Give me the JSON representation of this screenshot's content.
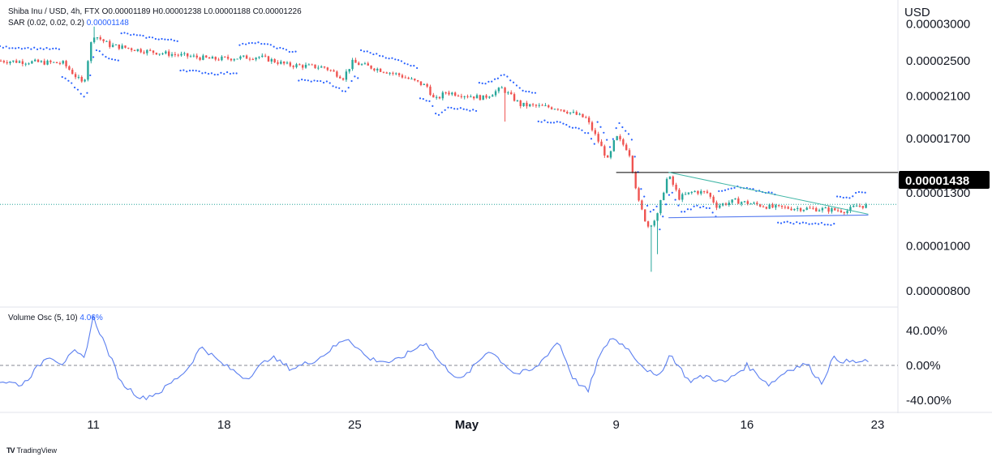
{
  "header": {
    "symbol": "Shiba Inu / USD, 4h, FTX",
    "o_label": "O",
    "o": "0.00001189",
    "h_label": "H",
    "h": "0.00001238",
    "l_label": "L",
    "l": "0.00001188",
    "c_label": "C",
    "c": "0.00001226",
    "sar_label": "SAR (0.02, 0.02, 0.2)",
    "sar": "0.00001148",
    "osc_label": "Volume Osc (5, 10)",
    "osc": "4.06%"
  },
  "axis_currency": "USD",
  "branding": "TradingView",
  "colors": {
    "up": "#26a69a",
    "down": "#ef5350",
    "sar": "#2962ff",
    "osc": "#5b7ff0",
    "trend": "#40b6a6",
    "support": "#5b7ff0",
    "hline": "#000000",
    "price_tag_bg": "#000000",
    "price_tag_fg": "#ffffff",
    "last_price_line": "#26a69a"
  },
  "chart_data": [
    {
      "type": "candlestick",
      "title": "Shiba Inu / USD, 4h, FTX",
      "y_ticks": [
        "0.00003000",
        "0.00002500",
        "0.00002100",
        "0.00001700",
        "0.00001300",
        "0.00001000",
        "0.00000800"
      ],
      "y_scale": "log",
      "x_ticks": [
        "11",
        "18",
        "25",
        "May",
        "9",
        "16",
        "23"
      ],
      "x_range": [
        "2022-04-06",
        "2022-05-24"
      ],
      "y_range": [
        7.6e-06,
        3.27e-05
      ],
      "highlighted_level": "0.00001438",
      "anchors": [
        {
          "d": 0.0,
          "p": 2.5e-05
        },
        {
          "d": 3.5,
          "p": 2.47e-05
        },
        {
          "d": 4.6,
          "p": 2.22e-05
        },
        {
          "d": 5.1,
          "p": 2.85e-05
        },
        {
          "d": 6.0,
          "p": 2.7e-05
        },
        {
          "d": 8.0,
          "p": 2.62e-05
        },
        {
          "d": 11.5,
          "p": 2.52e-05
        },
        {
          "d": 14.0,
          "p": 2.55e-05
        },
        {
          "d": 15.5,
          "p": 2.45e-05
        },
        {
          "d": 17.5,
          "p": 2.42e-05
        },
        {
          "d": 18.5,
          "p": 2.3e-05
        },
        {
          "d": 19.0,
          "p": 2.48e-05
        },
        {
          "d": 21.5,
          "p": 2.33e-05
        },
        {
          "d": 23.0,
          "p": 2.2e-05
        },
        {
          "d": 23.4,
          "p": 2.05e-05
        },
        {
          "d": 24.0,
          "p": 2.14e-05
        },
        {
          "d": 26.0,
          "p": 2.08e-05
        },
        {
          "d": 27.0,
          "p": 2.18e-05
        },
        {
          "d": 28.0,
          "p": 2.01e-05
        },
        {
          "d": 30.0,
          "p": 1.98e-05
        },
        {
          "d": 31.5,
          "p": 1.88e-05
        },
        {
          "d": 32.0,
          "p": 1.73e-05
        },
        {
          "d": 32.7,
          "p": 1.52e-05
        },
        {
          "d": 33.1,
          "p": 1.72e-05
        },
        {
          "d": 33.8,
          "p": 1.6e-05
        },
        {
          "d": 34.3,
          "p": 1.25e-05
        },
        {
          "d": 34.8,
          "p": 1.1e-05
        },
        {
          "d": 35.3,
          "p": 1.15e-05
        },
        {
          "d": 35.9,
          "p": 1.42e-05
        },
        {
          "d": 36.5,
          "p": 1.27e-05
        },
        {
          "d": 37.3,
          "p": 1.31e-05
        },
        {
          "d": 38.0,
          "p": 1.3e-05
        },
        {
          "d": 38.5,
          "p": 1.22e-05
        },
        {
          "d": 39.5,
          "p": 1.25e-05
        },
        {
          "d": 41.5,
          "p": 1.21e-05
        },
        {
          "d": 44.0,
          "p": 1.2e-05
        },
        {
          "d": 45.5,
          "p": 1.19e-05
        },
        {
          "d": 46.0,
          "p": 1.22e-05
        }
      ],
      "trendline_upper": [
        {
          "d": 35.8,
          "p": 1.44e-05
        },
        {
          "d": 46.5,
          "p": 1.17e-05
        }
      ],
      "trendline_lower": [
        {
          "d": 35.8,
          "p": 1.15e-05
        },
        {
          "d": 46.5,
          "p": 1.165e-05
        }
      ]
    },
    {
      "type": "line",
      "title": "Volume Osc (5, 10)",
      "y_ticks": [
        "40.00%",
        "0.00%",
        "-40.00%"
      ],
      "y_range": [
        -50,
        62
      ],
      "zero_line": "dashed",
      "anchors": [
        {
          "d": 0.0,
          "v": -18
        },
        {
          "d": 1.2,
          "v": -22
        },
        {
          "d": 2.6,
          "v": 12
        },
        {
          "d": 3.3,
          "v": 2
        },
        {
          "d": 4.0,
          "v": 15
        },
        {
          "d": 4.5,
          "v": 8
        },
        {
          "d": 5.0,
          "v": 55
        },
        {
          "d": 5.8,
          "v": 15
        },
        {
          "d": 6.5,
          "v": -20
        },
        {
          "d": 7.6,
          "v": -38
        },
        {
          "d": 8.6,
          "v": -30
        },
        {
          "d": 10.0,
          "v": -5
        },
        {
          "d": 10.8,
          "v": 22
        },
        {
          "d": 11.8,
          "v": 3
        },
        {
          "d": 13.2,
          "v": -15
        },
        {
          "d": 14.5,
          "v": 10
        },
        {
          "d": 15.6,
          "v": -4
        },
        {
          "d": 17.0,
          "v": 7
        },
        {
          "d": 18.6,
          "v": 32
        },
        {
          "d": 19.7,
          "v": 8
        },
        {
          "d": 21.0,
          "v": 3
        },
        {
          "d": 21.8,
          "v": 13
        },
        {
          "d": 22.8,
          "v": 27
        },
        {
          "d": 23.6,
          "v": 2
        },
        {
          "d": 24.7,
          "v": -17
        },
        {
          "d": 26.2,
          "v": 18
        },
        {
          "d": 27.6,
          "v": -10
        },
        {
          "d": 28.6,
          "v": -5
        },
        {
          "d": 29.2,
          "v": 10
        },
        {
          "d": 29.9,
          "v": 28
        },
        {
          "d": 30.7,
          "v": -15
        },
        {
          "d": 31.5,
          "v": -30
        },
        {
          "d": 32.0,
          "v": 5
        },
        {
          "d": 32.7,
          "v": 32
        },
        {
          "d": 33.5,
          "v": 22
        },
        {
          "d": 34.3,
          "v": 2
        },
        {
          "d": 35.2,
          "v": -15
        },
        {
          "d": 35.9,
          "v": 13
        },
        {
          "d": 36.9,
          "v": -18
        },
        {
          "d": 37.8,
          "v": -12
        },
        {
          "d": 38.8,
          "v": -20
        },
        {
          "d": 40.0,
          "v": 0
        },
        {
          "d": 41.2,
          "v": -22
        },
        {
          "d": 42.2,
          "v": -5
        },
        {
          "d": 43.2,
          "v": 2
        },
        {
          "d": 44.0,
          "v": -20
        },
        {
          "d": 44.6,
          "v": 8
        },
        {
          "d": 45.4,
          "v": 4
        },
        {
          "d": 46.0,
          "v": 4
        }
      ]
    }
  ]
}
